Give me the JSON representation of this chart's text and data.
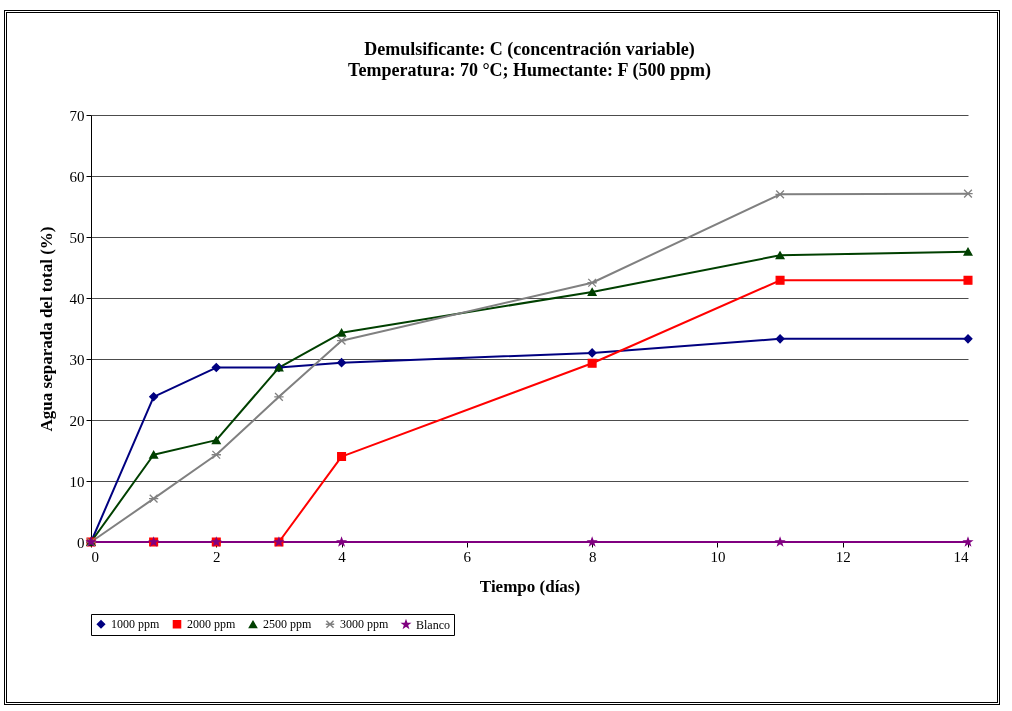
{
  "chart_data": {
    "type": "line",
    "title": "Demulsificante: C (concentración variable)",
    "subtitle": "Temperatura: 70 °C; Humectante: F (500 ppm)",
    "xlabel": "Tiempo (días)",
    "ylabel": "Agua separada del total (%)",
    "x": [
      0,
      1,
      2,
      3,
      4,
      8,
      11,
      14
    ],
    "series": [
      {
        "name": "1000 ppm",
        "color": "#000080",
        "marker": "diamond",
        "values": [
          0,
          23.8,
          28.6,
          28.6,
          29.4,
          31,
          33.3,
          33.3
        ]
      },
      {
        "name": "2000 ppm",
        "color": "#ff0000",
        "marker": "square",
        "values": [
          0,
          0,
          0,
          0,
          14,
          29.3,
          42.9,
          42.9
        ]
      },
      {
        "name": "2500 ppm",
        "color": "#004000",
        "marker": "triangle",
        "values": [
          0,
          14.3,
          16.7,
          28.6,
          34.3,
          41,
          47,
          47.6
        ]
      },
      {
        "name": "3000 ppm",
        "color": "#808080",
        "marker": "cross",
        "values": [
          0,
          7.1,
          14.3,
          23.8,
          33,
          42.5,
          57,
          57.1
        ]
      },
      {
        "name": "Blanco",
        "color": "#800080",
        "marker": "star",
        "values": [
          0,
          0,
          0,
          0,
          0,
          0,
          0,
          0
        ]
      }
    ],
    "xlim": [
      0,
      14
    ],
    "xticks": [
      0,
      2,
      4,
      6,
      8,
      10,
      12,
      14
    ],
    "ylim": [
      0,
      70
    ],
    "yticks": [
      0,
      10,
      20,
      30,
      40,
      50,
      60,
      70
    ],
    "grid": "y",
    "legend": "bottom"
  }
}
